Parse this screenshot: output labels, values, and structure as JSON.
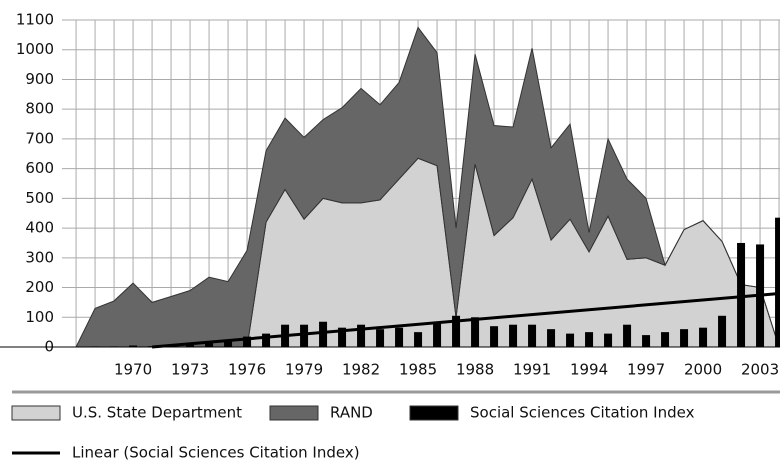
{
  "chart_data": {
    "type": "stacked-area-bar",
    "categories": [
      1967,
      1968,
      1969,
      1970,
      1971,
      1972,
      1973,
      1974,
      1975,
      1976,
      1977,
      1978,
      1979,
      1980,
      1981,
      1982,
      1983,
      1984,
      1985,
      1986,
      1987,
      1988,
      1989,
      1990,
      1991,
      1992,
      1993,
      1994,
      1995,
      1996,
      1997,
      1998,
      1999,
      2000,
      2001,
      2002,
      2003,
      2004
    ],
    "series": [
      {
        "name": "U.S. State Department",
        "color": "#d2d2d2",
        "kind": "area",
        "values": [
          0,
          0,
          0,
          0,
          0,
          0,
          0,
          0,
          0,
          0,
          420,
          530,
          430,
          500,
          485,
          485,
          495,
          565,
          635,
          610,
          100,
          615,
          375,
          435,
          565,
          360,
          430,
          320,
          440,
          295,
          300,
          275,
          395,
          425,
          355,
          210,
          200,
          0
        ]
      },
      {
        "name": "RAND",
        "color": "#666666",
        "kind": "area",
        "values": [
          0,
          130,
          155,
          215,
          150,
          170,
          190,
          235,
          220,
          325,
          240,
          240,
          275,
          265,
          320,
          385,
          320,
          325,
          440,
          380,
          300,
          370,
          370,
          305,
          440,
          310,
          320,
          65,
          260,
          270,
          200,
          0,
          0,
          0,
          0,
          0,
          0,
          0
        ]
      },
      {
        "name": "Social Sciences Citation Index",
        "color": "#000000",
        "kind": "bar",
        "values": [
          0,
          2,
          2,
          5,
          3,
          5,
          8,
          15,
          20,
          35,
          45,
          75,
          75,
          85,
          65,
          75,
          60,
          65,
          50,
          80,
          105,
          100,
          70,
          75,
          75,
          60,
          45,
          50,
          45,
          75,
          40,
          50,
          60,
          65,
          105,
          350,
          345,
          435
        ]
      }
    ],
    "trendline": {
      "name": "Linear (Social Sciences Citation Index)",
      "color": "#000000",
      "x": [
        1971,
        2004
      ],
      "values": [
        0,
        180
      ]
    },
    "xlim": [
      1966.26,
      2004.05
    ],
    "xticks": [
      1970,
      1973,
      1976,
      1979,
      1982,
      1985,
      1988,
      1991,
      1994,
      1997,
      2000,
      2003
    ],
    "ylim": [
      0,
      1100
    ],
    "yticks": [
      0,
      100,
      200,
      300,
      400,
      500,
      600,
      700,
      800,
      900,
      1000,
      1100
    ],
    "grid": true
  }
}
